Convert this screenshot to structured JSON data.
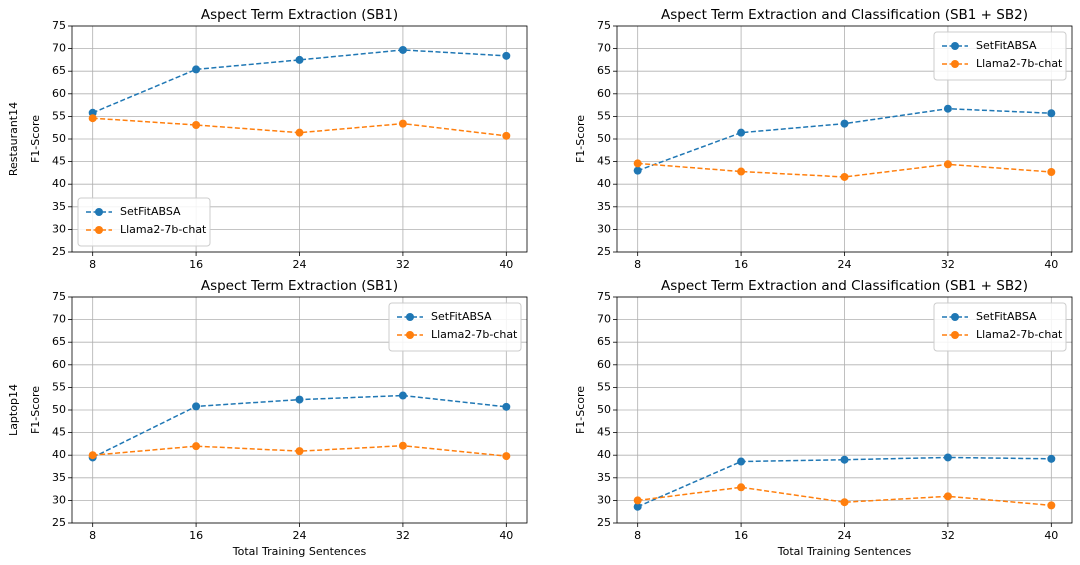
{
  "chart_data": [
    {
      "type": "line",
      "title": "Aspect Term Extraction (SB1)",
      "row_label": "Restaurant14",
      "y_label": "F1-Score",
      "x": [
        8,
        16,
        24,
        32,
        40
      ],
      "xlim": [
        6.4,
        41.6
      ],
      "xticks": [
        8,
        16,
        24,
        32,
        40
      ],
      "ylim": [
        25,
        75
      ],
      "yticks": [
        25,
        30,
        35,
        40,
        45,
        50,
        55,
        60,
        65,
        70,
        75
      ],
      "grid": true,
      "legend": "lower left",
      "series": [
        {
          "name": "SetFitABSA",
          "color": "#1f77b4",
          "values": [
            55.8,
            65.4,
            67.5,
            69.7,
            68.4
          ]
        },
        {
          "name": "Llama2-7b-chat",
          "color": "#ff7f0e",
          "values": [
            54.6,
            53.1,
            51.4,
            53.4,
            50.7
          ]
        }
      ]
    },
    {
      "type": "line",
      "title": "Aspect Term Extraction and Classification (SB1 + SB2)",
      "y_label": "F1-Score",
      "x": [
        8,
        16,
        24,
        32,
        40
      ],
      "xlim": [
        6.4,
        41.6
      ],
      "xticks": [
        8,
        16,
        24,
        32,
        40
      ],
      "ylim": [
        25,
        75
      ],
      "yticks": [
        25,
        30,
        35,
        40,
        45,
        50,
        55,
        60,
        65,
        70,
        75
      ],
      "grid": true,
      "legend": "upper right",
      "series": [
        {
          "name": "SetFitABSA",
          "color": "#1f77b4",
          "values": [
            43.0,
            51.4,
            53.4,
            56.7,
            55.7
          ]
        },
        {
          "name": "Llama2-7b-chat",
          "color": "#ff7f0e",
          "values": [
            44.6,
            42.8,
            41.6,
            44.4,
            42.7
          ]
        }
      ]
    },
    {
      "type": "line",
      "title": "Aspect Term Extraction (SB1)",
      "row_label": "Laptop14",
      "y_label": "F1-Score",
      "x_label": "Total Training Sentences",
      "x": [
        8,
        16,
        24,
        32,
        40
      ],
      "xlim": [
        6.4,
        41.6
      ],
      "xticks": [
        8,
        16,
        24,
        32,
        40
      ],
      "ylim": [
        25,
        75
      ],
      "yticks": [
        25,
        30,
        35,
        40,
        45,
        50,
        55,
        60,
        65,
        70,
        75
      ],
      "grid": true,
      "legend": "upper right",
      "series": [
        {
          "name": "SetFitABSA",
          "color": "#1f77b4",
          "values": [
            39.5,
            50.8,
            52.3,
            53.2,
            50.7
          ]
        },
        {
          "name": "Llama2-7b-chat",
          "color": "#ff7f0e",
          "values": [
            40.0,
            42.0,
            40.9,
            42.1,
            39.8
          ]
        }
      ]
    },
    {
      "type": "line",
      "title": "Aspect Term Extraction and Classification (SB1 + SB2)",
      "y_label": "F1-Score",
      "x_label": "Total Training Sentences",
      "x": [
        8,
        16,
        24,
        32,
        40
      ],
      "xlim": [
        6.4,
        41.6
      ],
      "xticks": [
        8,
        16,
        24,
        32,
        40
      ],
      "ylim": [
        25,
        75
      ],
      "yticks": [
        25,
        30,
        35,
        40,
        45,
        50,
        55,
        60,
        65,
        70,
        75
      ],
      "grid": true,
      "legend": "upper right",
      "series": [
        {
          "name": "SetFitABSA",
          "color": "#1f77b4",
          "values": [
            28.6,
            38.6,
            39.0,
            39.5,
            39.2
          ]
        },
        {
          "name": "Llama2-7b-chat",
          "color": "#ff7f0e",
          "values": [
            30.0,
            32.9,
            29.6,
            30.9,
            28.9
          ]
        }
      ]
    }
  ]
}
